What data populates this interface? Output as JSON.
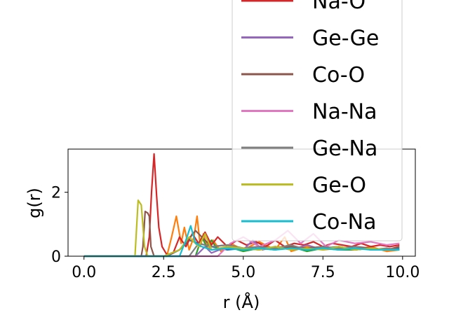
{
  "chart_data": {
    "type": "line",
    "xlabel": "r (Å)",
    "ylabel": "g(r)",
    "xlim": [
      -0.5,
      10.4
    ],
    "ylim": [
      0,
      3.35
    ],
    "xticks": [
      "0.0",
      "2.5",
      "5.0",
      "7.5",
      "10.0"
    ],
    "xtick_values": [
      0,
      2.5,
      5.0,
      7.5,
      10.0
    ],
    "yticks": [
      "0",
      "2"
    ],
    "ytick_values": [
      0,
      2
    ],
    "grid": false,
    "legend_position": "upper-right, extending above the axes",
    "series": [
      {
        "name": "",
        "color": "#1f77b4",
        "x": [
          0,
          2.6,
          3.0,
          3.3,
          3.6,
          4.0,
          4.5,
          5.0,
          5.5,
          6.0,
          6.5,
          7.0,
          7.5,
          8.0,
          8.5,
          9.0,
          9.5,
          9.9
        ],
        "y": [
          0,
          0,
          0.2,
          0.5,
          0.4,
          0.3,
          0.2,
          0.25,
          0.2,
          0.3,
          0.25,
          0.2,
          0.25,
          0.3,
          0.2,
          0.25,
          0.2,
          0.25
        ]
      },
      {
        "name": "",
        "color": "#ff7f0e",
        "x": [
          0,
          2.6,
          2.75,
          2.9,
          3.05,
          3.15,
          3.3,
          3.45,
          3.55,
          3.65,
          3.75,
          3.9,
          4.05,
          4.3,
          4.6,
          5.0,
          5.5,
          6.0,
          6.3,
          6.5,
          7.0,
          7.5,
          8.0,
          8.5,
          9.0,
          9.5,
          9.9
        ],
        "y": [
          0,
          0,
          0.6,
          1.25,
          0.4,
          0.9,
          0.2,
          0.6,
          1.25,
          0.3,
          0.7,
          0.2,
          0.5,
          0.15,
          0.4,
          0.2,
          0.45,
          0.2,
          0.6,
          0.15,
          0.3,
          0.2,
          0.25,
          0.2,
          0.3,
          0.15,
          0.2
        ]
      },
      {
        "name": "",
        "color": "#2ca02c",
        "x": [
          0,
          3.5,
          3.7,
          3.85,
          4.0,
          4.2,
          4.5,
          5.0,
          5.5,
          6.0,
          6.5,
          7.0,
          7.5,
          8.0,
          8.5,
          9.0,
          9.5,
          9.9
        ],
        "y": [
          0,
          0,
          0.6,
          0.3,
          0.5,
          0.2,
          0.3,
          0.15,
          0.25,
          0.2,
          0.3,
          0.15,
          0.25,
          0.2,
          0.2,
          0.25,
          0.2,
          0.2
        ]
      },
      {
        "name": "Na-O",
        "color": "#d62728",
        "x": [
          0,
          1.95,
          2.05,
          2.12,
          2.2,
          2.28,
          2.35,
          2.45,
          2.6,
          2.8,
          3.0,
          3.2,
          3.4,
          3.6,
          3.8,
          4.0,
          4.2,
          4.5,
          4.8,
          5.1,
          5.4,
          5.7,
          6.0,
          6.3,
          6.6,
          6.9,
          7.2,
          7.5,
          7.8,
          8.1,
          8.4,
          8.7,
          9.0,
          9.3,
          9.6,
          9.9
        ],
        "y": [
          0,
          0,
          0.6,
          2.0,
          3.2,
          1.9,
          0.9,
          0.3,
          0.05,
          0.1,
          0.6,
          0.3,
          0.7,
          0.4,
          0.75,
          0.35,
          0.6,
          0.3,
          0.5,
          0.35,
          0.45,
          0.3,
          0.5,
          0.3,
          0.4,
          0.35,
          0.45,
          0.3,
          0.4,
          0.35,
          0.3,
          0.4,
          0.3,
          0.35,
          0.3,
          0.35
        ]
      },
      {
        "name": "Ge-Ge",
        "color": "#9467bd",
        "x": [
          0,
          3.5,
          3.8,
          4.0,
          4.5,
          5.0,
          5.3,
          5.6,
          6.0,
          6.5,
          7.0,
          7.5,
          8.0,
          8.5,
          9.0,
          9.5,
          9.9
        ],
        "y": [
          0,
          0,
          0.3,
          0.1,
          0.3,
          0.2,
          0.5,
          0.2,
          0.3,
          0.2,
          0.35,
          0.2,
          0.3,
          0.2,
          0.25,
          0.2,
          0.2
        ]
      },
      {
        "name": "Co-O",
        "color": "#8c564b",
        "x": [
          0,
          1.8,
          1.85,
          1.92,
          2.0,
          2.05,
          2.1,
          2.2,
          2.5,
          3.0,
          3.5,
          4.0,
          4.5,
          5.0,
          5.5,
          6.0,
          6.5,
          7.0,
          7.5,
          8.0,
          8.5,
          9.0,
          9.5,
          9.9
        ],
        "y": [
          0,
          0,
          0.3,
          1.4,
          1.35,
          1.25,
          0.3,
          0,
          0,
          0.2,
          0.8,
          0.3,
          0.35,
          0.25,
          0.3,
          0.2,
          0.3,
          0.25,
          0.3,
          0.2,
          0.3,
          0.25,
          0.2,
          0.3
        ]
      },
      {
        "name": "Na-Na",
        "color": "#e377c2",
        "x": [
          0,
          4.2,
          4.6,
          5.0,
          5.5,
          6.0,
          6.4,
          6.8,
          7.2,
          7.6,
          8.0,
          8.5,
          9.0,
          9.5,
          9.9
        ],
        "y": [
          0,
          0,
          0.4,
          0.6,
          0.3,
          0.5,
          0.8,
          0.4,
          0.7,
          0.3,
          0.5,
          0.4,
          0.45,
          0.35,
          0.4
        ]
      },
      {
        "name": "Ge-Na",
        "color": "#7f7f7f",
        "x": [
          0,
          3.3,
          3.6,
          4.0,
          4.5,
          5.0,
          5.5,
          6.0,
          6.5,
          7.0,
          7.5,
          8.0,
          8.5,
          9.0,
          9.5,
          9.9
        ],
        "y": [
          0,
          0,
          0.4,
          0.3,
          0.35,
          0.25,
          0.3,
          0.25,
          0.35,
          0.2,
          0.3,
          0.25,
          0.3,
          0.2,
          0.25,
          0.2
        ]
      },
      {
        "name": "Ge-O",
        "color": "#bcbd22",
        "x": [
          0,
          1.6,
          1.7,
          1.8,
          1.9,
          2.0,
          2.5,
          3.0,
          3.3,
          3.6,
          3.8,
          4.0,
          4.5,
          5.0,
          5.5,
          6.0,
          6.5,
          7.0,
          7.5,
          8.0,
          8.5,
          9.0,
          9.5,
          9.9
        ],
        "y": [
          0,
          0,
          1.75,
          1.6,
          0.3,
          0,
          0,
          0.2,
          0.6,
          0.3,
          0.7,
          0.2,
          0.3,
          0.25,
          0.2,
          0.3,
          0.2,
          0.25,
          0.2,
          0.3,
          0.2,
          0.25,
          0.2,
          0.2
        ]
      },
      {
        "name": "Co-Na",
        "color": "#17becf",
        "x": [
          0,
          3.0,
          3.2,
          3.35,
          3.5,
          3.7,
          4.0,
          4.5,
          5.0,
          5.5,
          6.0,
          6.5,
          7.0,
          7.5,
          8.0,
          8.5,
          9.0,
          9.5,
          9.9
        ],
        "y": [
          0,
          0,
          0.5,
          0.95,
          0.4,
          0.3,
          0.2,
          0.25,
          0.2,
          0.25,
          0.2,
          0.25,
          0.2,
          0.25,
          0.2,
          0.25,
          0.2,
          0.2,
          0.2
        ]
      }
    ],
    "legend": [
      "Na-O",
      "Ge-Ge",
      "Co-O",
      "Na-Na",
      "Ge-Na",
      "Ge-O",
      "Co-Na"
    ]
  }
}
